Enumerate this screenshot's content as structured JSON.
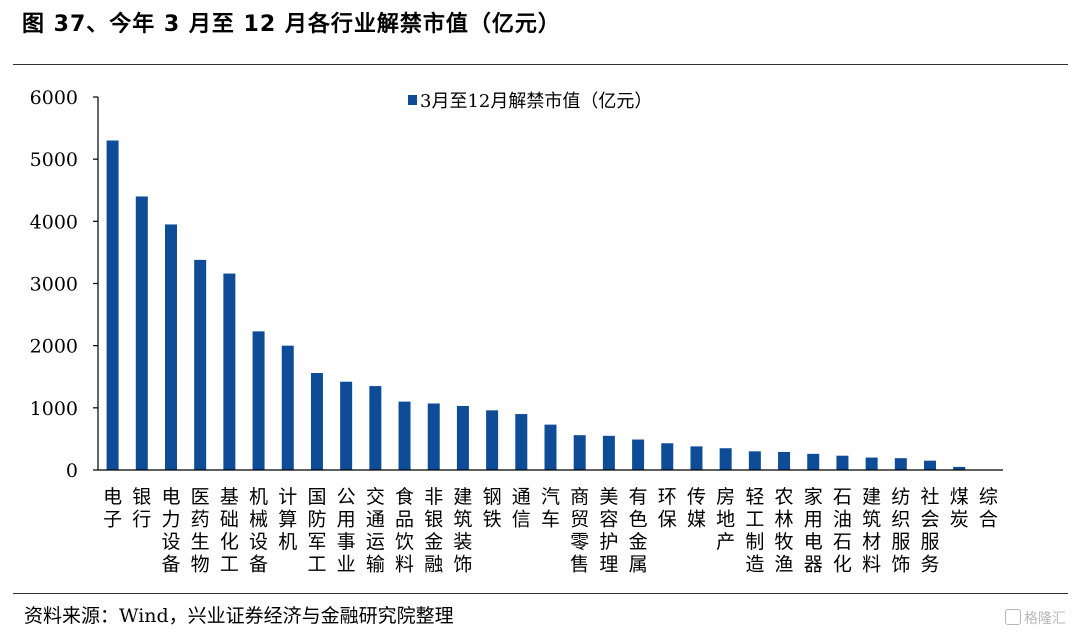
{
  "figure": {
    "title": "图 37、今年 3 月至 12 月各行业解禁市值（亿元）",
    "source": "资料来源：Wind，兴业证券经济与金融研究院整理",
    "watermark": "格隆汇"
  },
  "colors": {
    "bar": "#0f4c97",
    "axis": "#000000"
  },
  "chart_data": {
    "type": "bar",
    "title": "",
    "xlabel": "",
    "ylabel": "",
    "ylim": [
      0,
      6000
    ],
    "yticks": [
      0,
      1000,
      2000,
      3000,
      4000,
      5000,
      6000
    ],
    "grid": false,
    "legend_position": "top-center",
    "categories": [
      "电子",
      "银行",
      "电力设备",
      "医药生物",
      "基础化工",
      "机械设备",
      "计算机",
      "国防军工",
      "公用事业",
      "交通运输",
      "食品饮料",
      "非银金融",
      "建筑装饰",
      "钢铁",
      "通信",
      "汽车",
      "商贸零售",
      "美容护理",
      "有色金属",
      "环保",
      "传媒",
      "房地产",
      "轻工制造",
      "农林牧渔",
      "家用电器",
      "石油石化",
      "建筑材料",
      "纺织服饰",
      "社会服务",
      "煤炭",
      "综合"
    ],
    "series": [
      {
        "name": "3月至12月解禁市值（亿元）",
        "values": [
          5300,
          4400,
          3950,
          3380,
          3160,
          2230,
          2000,
          1560,
          1420,
          1350,
          1100,
          1070,
          1030,
          960,
          900,
          730,
          560,
          550,
          490,
          430,
          380,
          350,
          300,
          290,
          260,
          230,
          200,
          190,
          150,
          50,
          0
        ]
      }
    ]
  }
}
